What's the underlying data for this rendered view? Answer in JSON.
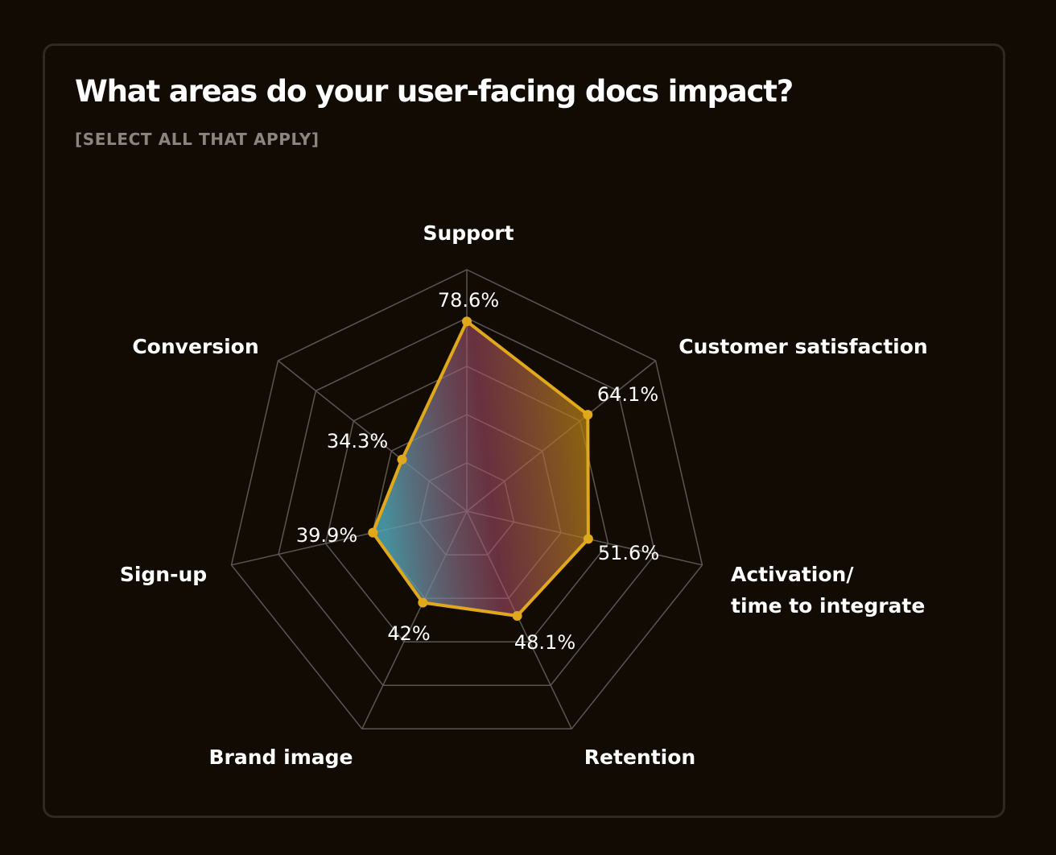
{
  "header": {
    "title": "What areas do your user-facing docs impact?",
    "subtitle": "[SELECT ALL THAT APPLY]"
  },
  "colors": {
    "background": "#110b03",
    "card_border": "#2d2923",
    "grid": "#5a5650",
    "series_line": "#e0a81c",
    "fill_gold": "#b8860b",
    "fill_pink": "#b05070",
    "fill_teal": "#4fa8b8"
  },
  "chart_data": {
    "type": "radar",
    "title": "What areas do your user-facing docs impact?",
    "subtitle": "[SELECT ALL THAT APPLY]",
    "categories": [
      "Support",
      "Customer satisfaction",
      "Activation/ time to integrate",
      "Retention",
      "Brand image",
      "Sign-up",
      "Conversion"
    ],
    "category_lines": [
      [
        "Support"
      ],
      [
        "Customer satisfaction"
      ],
      [
        "Activation/",
        "time to integrate"
      ],
      [
        "Retention"
      ],
      [
        "Brand image"
      ],
      [
        "Sign-up"
      ],
      [
        "Conversion"
      ]
    ],
    "values": [
      78.6,
      64.1,
      51.6,
      48.1,
      42,
      39.9,
      34.3
    ],
    "value_labels": [
      "78.6%",
      "64.1%",
      "51.6%",
      "48.1%",
      "42%",
      "39.9%",
      "34.3%"
    ],
    "range": [
      0,
      100
    ],
    "grid_levels": [
      20,
      40,
      60,
      80,
      100
    ],
    "unit": "%"
  }
}
